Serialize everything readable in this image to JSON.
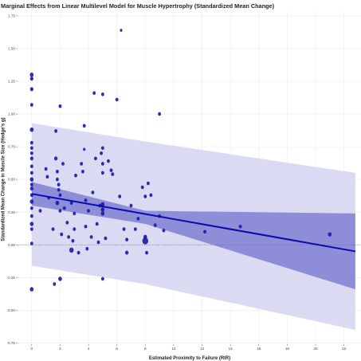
{
  "chart_data": {
    "type": "scatter",
    "title": "Marginal Effects from Linear Multilevel Model for Muscle Hypertrophy (Standardized Mean Change)",
    "xlabel": "Estimated Proximity to Failure (RIR)",
    "ylabel": "Standardized Mean Change in Muscle Size (Hedge's g)",
    "xlim": [
      -1,
      23.2
    ],
    "ylim": [
      -0.76,
      1.78
    ],
    "x_ticks": [
      "0",
      "2",
      "4",
      "6",
      "8",
      "10",
      "12",
      "14",
      "16",
      "18",
      "20",
      "22"
    ],
    "y_ticks": [
      "-0.75",
      "-0.50",
      "-0.25",
      "0.00",
      "0.25",
      "0.50",
      "0.75",
      "1.00",
      "1.25",
      "1.50",
      "1.75"
    ],
    "grid": true,
    "reference_line_y": 0,
    "colors": {
      "points": "#1c1ca8",
      "fit_line": "#0a0ab0",
      "confidence_band": "#8e8ed8",
      "prediction_band": "#dadaf2",
      "reference_line": "#666666"
    },
    "fit_line": {
      "x": [
        0,
        22.8
      ],
      "y": [
        0.39,
        -0.05
      ]
    },
    "confidence_band": {
      "x": [
        0,
        8,
        22.8
      ],
      "lower": [
        0.3,
        0.16,
        -0.34
      ],
      "upper": [
        0.48,
        0.26,
        0.24
      ]
    },
    "prediction_band": {
      "x": [
        0,
        8,
        22.8
      ],
      "lower": [
        -0.16,
        -0.3,
        -0.65
      ],
      "upper": [
        0.93,
        0.79,
        0.55
      ]
    },
    "points": [
      {
        "x": 0,
        "y": -0.34,
        "size": 1.2
      },
      {
        "x": 0,
        "y": 1.3,
        "size": 1.2
      },
      {
        "x": 0,
        "y": 1.27,
        "size": 1.1
      },
      {
        "x": 0,
        "y": 1.19,
        "size": 1.1
      },
      {
        "x": 0,
        "y": 1.07,
        "size": 1.0
      },
      {
        "x": 0,
        "y": 0.88,
        "size": 1.2
      },
      {
        "x": 0,
        "y": 0.78,
        "size": 1.0
      },
      {
        "x": 0,
        "y": 0.74,
        "size": 1.0
      },
      {
        "x": 0,
        "y": 0.7,
        "size": 1.0
      },
      {
        "x": 0,
        "y": 0.66,
        "size": 1.1
      },
      {
        "x": 0,
        "y": 0.6,
        "size": 1.0
      },
      {
        "x": 0,
        "y": 0.55,
        "size": 1.0
      },
      {
        "x": 0,
        "y": 0.5,
        "size": 1.2
      },
      {
        "x": 0,
        "y": 0.46,
        "size": 1.0
      },
      {
        "x": 0,
        "y": 0.43,
        "size": 1.1
      },
      {
        "x": 0,
        "y": 0.38,
        "size": 1.0
      },
      {
        "x": 0,
        "y": 0.33,
        "size": 1.2
      },
      {
        "x": 0,
        "y": 0.28,
        "size": 1.0
      },
      {
        "x": 0,
        "y": 0.22,
        "size": 1.0
      },
      {
        "x": 0,
        "y": 0.16,
        "size": 1.2
      },
      {
        "x": 0,
        "y": 0.12,
        "size": 1.0
      },
      {
        "x": 0,
        "y": 0.01,
        "size": 1.0
      },
      {
        "x": 0.6,
        "y": 0.26,
        "size": 1.0
      },
      {
        "x": 1.0,
        "y": 0.58,
        "size": 1.0
      },
      {
        "x": 1.1,
        "y": 0.52,
        "size": 1.0
      },
      {
        "x": 1.2,
        "y": 0.36,
        "size": 1.0
      },
      {
        "x": 1.5,
        "y": 0.12,
        "size": 1.0
      },
      {
        "x": 1.6,
        "y": -0.3,
        "size": 1.0
      },
      {
        "x": 1.7,
        "y": 0.87,
        "size": 1.0
      },
      {
        "x": 1.7,
        "y": 0.66,
        "size": 1.1
      },
      {
        "x": 1.8,
        "y": 0.56,
        "size": 1.0
      },
      {
        "x": 1.8,
        "y": 0.5,
        "size": 1.0
      },
      {
        "x": 1.9,
        "y": 0.46,
        "size": 1.0
      },
      {
        "x": 1.9,
        "y": 0.42,
        "size": 1.0
      },
      {
        "x": 2.0,
        "y": 0.38,
        "size": 1.0
      },
      {
        "x": 1.8,
        "y": 0.32,
        "size": 1.2
      },
      {
        "x": 2.0,
        "y": 0.26,
        "size": 1.0
      },
      {
        "x": 2.0,
        "y": 1.06,
        "size": 1.0
      },
      {
        "x": 2.0,
        "y": -0.26,
        "size": 1.2
      },
      {
        "x": 2.1,
        "y": 0.08,
        "size": 1.0
      },
      {
        "x": 2.2,
        "y": 0.62,
        "size": 1.0
      },
      {
        "x": 2.3,
        "y": 0.28,
        "size": 1.0
      },
      {
        "x": 2.5,
        "y": 0.17,
        "size": 1.0
      },
      {
        "x": 2.6,
        "y": 0.06,
        "size": 1.0
      },
      {
        "x": 2.8,
        "y": 0.32,
        "size": 1.0
      },
      {
        "x": 2.9,
        "y": 0.03,
        "size": 1.0
      },
      {
        "x": 3.0,
        "y": 0.12,
        "size": 1.0
      },
      {
        "x": 2.8,
        "y": -0.04,
        "size": 1.4
      },
      {
        "x": 3.0,
        "y": 0.24,
        "size": 1.0
      },
      {
        "x": 3.1,
        "y": 0.53,
        "size": 1.0
      },
      {
        "x": 3.3,
        "y": -0.06,
        "size": 1.0
      },
      {
        "x": 3.5,
        "y": 0.62,
        "size": 1.0
      },
      {
        "x": 3.6,
        "y": 0.56,
        "size": 1.0
      },
      {
        "x": 3.7,
        "y": 0.91,
        "size": 1.0
      },
      {
        "x": 3.7,
        "y": 0.73,
        "size": 0.8
      },
      {
        "x": 3.8,
        "y": 0.34,
        "size": 1.0
      },
      {
        "x": 3.8,
        "y": 0.14,
        "size": 1.0
      },
      {
        "x": 3.9,
        "y": -0.03,
        "size": 1.0
      },
      {
        "x": 4.0,
        "y": 0.26,
        "size": 1.0
      },
      {
        "x": 4.2,
        "y": 0.06,
        "size": 1.0
      },
      {
        "x": 4.3,
        "y": 0.4,
        "size": 1.0
      },
      {
        "x": 4.4,
        "y": 1.16,
        "size": 1.0
      },
      {
        "x": 4.5,
        "y": 0.66,
        "size": 1.0
      },
      {
        "x": 4.6,
        "y": 0.16,
        "size": 1.0
      },
      {
        "x": 4.7,
        "y": 0.02,
        "size": 1.0
      },
      {
        "x": 4.8,
        "y": 0.3,
        "size": 1.0
      },
      {
        "x": 4.9,
        "y": 0.7,
        "size": 1.0
      },
      {
        "x": 5.0,
        "y": 0.74,
        "size": 1.0
      },
      {
        "x": 5.0,
        "y": 0.62,
        "size": 1.0
      },
      {
        "x": 5.0,
        "y": 0.55,
        "size": 1.0
      },
      {
        "x": 5.0,
        "y": 0.31,
        "size": 1.2
      },
      {
        "x": 5.0,
        "y": 0.27,
        "size": 1.2
      },
      {
        "x": 5.0,
        "y": 0.24,
        "size": 1.2
      },
      {
        "x": 5.0,
        "y": -0.26,
        "size": 1.0
      },
      {
        "x": 5.0,
        "y": 1.15,
        "size": 1.0
      },
      {
        "x": 5.2,
        "y": 0.05,
        "size": 1.0
      },
      {
        "x": 5.4,
        "y": 0.64,
        "size": 1.0
      },
      {
        "x": 5.6,
        "y": 0.57,
        "size": 1.0
      },
      {
        "x": 5.7,
        "y": 0.54,
        "size": 1.0
      },
      {
        "x": 6.0,
        "y": 1.11,
        "size": 1.0
      },
      {
        "x": 6.2,
        "y": 0.37,
        "size": 1.0
      },
      {
        "x": 6.3,
        "y": 1.64,
        "size": 0.8
      },
      {
        "x": 6.5,
        "y": 0.12,
        "size": 1.0
      },
      {
        "x": 6.7,
        "y": 0.04,
        "size": 1.0
      },
      {
        "x": 6.7,
        "y": -0.06,
        "size": 1.1
      },
      {
        "x": 7.0,
        "y": 0.3,
        "size": 1.0
      },
      {
        "x": 7.3,
        "y": 0.12,
        "size": 1.0
      },
      {
        "x": 7.5,
        "y": 0.2,
        "size": 1.0
      },
      {
        "x": 7.8,
        "y": 0.44,
        "size": 1.0
      },
      {
        "x": 8.0,
        "y": 0.37,
        "size": 1.0
      },
      {
        "x": 8.0,
        "y": 0.06,
        "size": 1.2
      },
      {
        "x": 8.0,
        "y": 0.03,
        "size": 1.9
      },
      {
        "x": 8.1,
        "y": -0.06,
        "size": 1.0
      },
      {
        "x": 8.2,
        "y": 0.47,
        "size": 1.0
      },
      {
        "x": 8.4,
        "y": 0.38,
        "size": 1.0
      },
      {
        "x": 8.7,
        "y": 0.15,
        "size": 1.0
      },
      {
        "x": 9.0,
        "y": 0.22,
        "size": 1.0
      },
      {
        "x": 9.0,
        "y": 1.0,
        "size": 1.0
      },
      {
        "x": 9.3,
        "y": 0.11,
        "size": 1.0
      },
      {
        "x": 12.2,
        "y": 0.1,
        "size": 1.0
      },
      {
        "x": 14.7,
        "y": 0.14,
        "size": 1.0
      },
      {
        "x": 21.0,
        "y": 0.08,
        "size": 1.2
      }
    ]
  }
}
